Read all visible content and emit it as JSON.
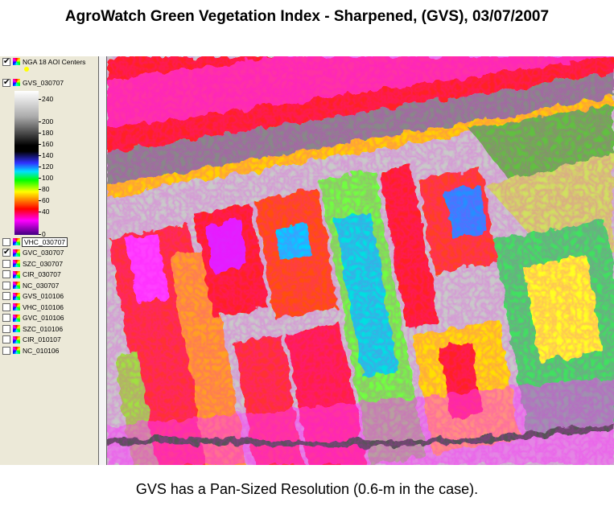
{
  "header": {
    "title": "AgroWatch Green Vegetation Index - Sharpened, (GVS), 03/07/2007"
  },
  "layers": [
    {
      "name": "NGA 18 AOI Centers",
      "checked": true
    },
    {
      "name": "GVS_030707",
      "checked": true
    },
    {
      "name": "VHC_030707",
      "checked": false
    },
    {
      "name": "GVC_030707",
      "checked": true
    },
    {
      "name": "SZC_030707",
      "checked": false
    },
    {
      "name": "CIR_030707",
      "checked": false
    },
    {
      "name": "NC_030707",
      "checked": false
    },
    {
      "name": "GVS_010106",
      "checked": false
    },
    {
      "name": "VHC_010106",
      "checked": false
    },
    {
      "name": "GVC_010106",
      "checked": false
    },
    {
      "name": "SZC_010106",
      "checked": false
    },
    {
      "name": "CIR_010107",
      "checked": false
    },
    {
      "name": "NC_010106",
      "checked": false
    }
  ],
  "legend": {
    "ticks": [
      240,
      200,
      180,
      160,
      140,
      120,
      100,
      80,
      60,
      40,
      0
    ]
  },
  "caption": "GVS has a Pan-Sized Resolution (0.6-m in the case)."
}
